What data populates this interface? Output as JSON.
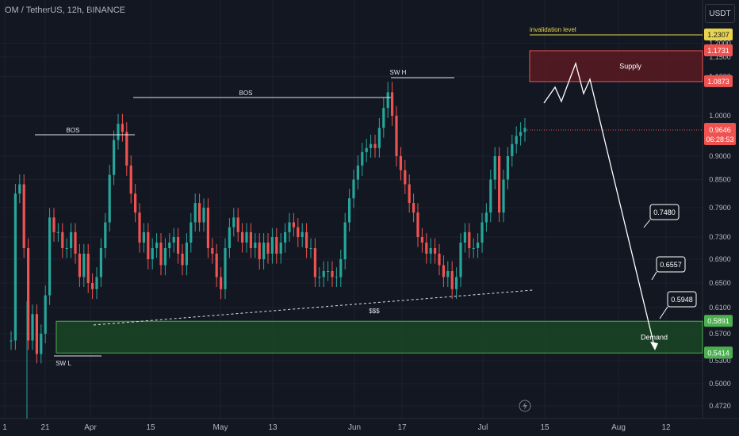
{
  "header": {
    "title": "OM / TetherUS, 12h, BINANCE"
  },
  "axis": {
    "currency_button": "USDT"
  },
  "colors": {
    "bg": "#131722",
    "up": "#26a69a",
    "down": "#ef5350",
    "grid": "#1e222d",
    "text": "#b2b5be"
  },
  "chart_data": {
    "type": "candlestick",
    "title": "OM / TetherUS, 12h, BINANCE",
    "y_ticks": [
      1.2,
      1.15,
      1.1,
      1.0,
      0.9,
      0.85,
      0.79,
      0.73,
      0.69,
      0.65,
      0.61,
      0.57,
      0.53,
      0.5,
      0.472
    ],
    "x_ticks": [
      "1",
      "21",
      "Apr",
      "15",
      "May",
      "13",
      "Jun",
      "17",
      "Jul",
      "15",
      "Aug",
      "12"
    ],
    "close_series": [
      0.56,
      0.82,
      0.84,
      0.71,
      0.56,
      0.6,
      0.54,
      0.57,
      0.63,
      0.77,
      0.74,
      0.74,
      0.71,
      0.71,
      0.74,
      0.7,
      0.66,
      0.7,
      0.65,
      0.64,
      0.66,
      0.71,
      0.76,
      0.86,
      0.94,
      0.98,
      0.96,
      0.88,
      0.82,
      0.78,
      0.72,
      0.74,
      0.69,
      0.71,
      0.72,
      0.68,
      0.71,
      0.72,
      0.73,
      0.7,
      0.68,
      0.72,
      0.76,
      0.8,
      0.76,
      0.79,
      0.71,
      0.7,
      0.66,
      0.64,
      0.71,
      0.75,
      0.77,
      0.74,
      0.72,
      0.74,
      0.71,
      0.72,
      0.69,
      0.72,
      0.7,
      0.73,
      0.7,
      0.72,
      0.74,
      0.76,
      0.75,
      0.73,
      0.74,
      0.71,
      0.71,
      0.66,
      0.66,
      0.67,
      0.67,
      0.66,
      0.66,
      0.69,
      0.76,
      0.81,
      0.85,
      0.88,
      0.91,
      0.92,
      0.93,
      0.92,
      0.97,
      1.02,
      1.06,
      1.0,
      0.9,
      0.87,
      0.84,
      0.8,
      0.78,
      0.73,
      0.72,
      0.7,
      0.71,
      0.7,
      0.68,
      0.66,
      0.67,
      0.64,
      0.66,
      0.72,
      0.74,
      0.71,
      0.71,
      0.72,
      0.76,
      0.78,
      0.85,
      0.9,
      0.78,
      0.85,
      0.9,
      0.93,
      0.95,
      0.96,
      0.97
    ],
    "last_price": {
      "value": "0.9646",
      "countdown": "06:28:53"
    },
    "levels": [
      {
        "name": "invalidation",
        "value": "1.2307",
        "label": "invalidation level"
      },
      {
        "name": "supply_top",
        "value": "1.1731"
      },
      {
        "name": "supply_bottom",
        "value": "1.0873"
      },
      {
        "name": "demand_top",
        "value": "0.5891"
      },
      {
        "name": "demand_bottom",
        "value": "0.5414"
      }
    ],
    "zones": [
      {
        "label": "Supply",
        "from": 1.0873,
        "to": 1.1731,
        "color": "#b22833"
      },
      {
        "label": "Demand",
        "from": 0.5414,
        "to": 0.5891,
        "color": "#2e7d32"
      }
    ],
    "annotations": [
      "BOS",
      "BOS",
      "SW H",
      "SW L",
      "$$$"
    ],
    "targets": [
      "0.7480",
      "0.6557",
      "0.5948"
    ]
  }
}
